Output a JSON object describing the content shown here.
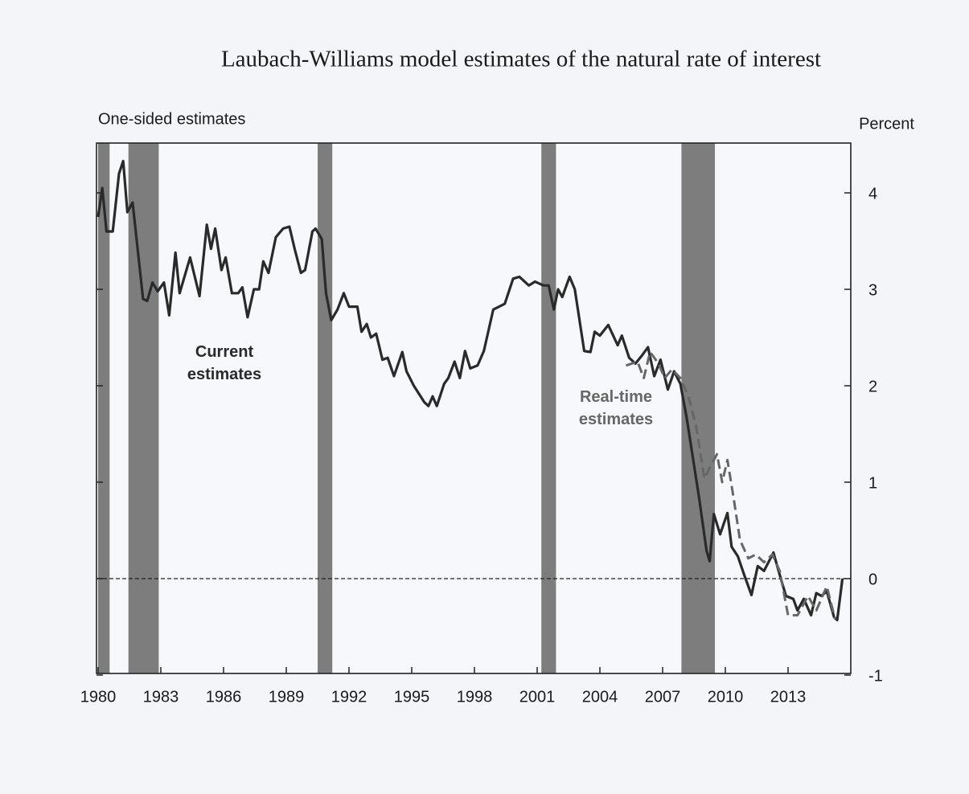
{
  "chart_data": {
    "type": "line",
    "title": "Laubach-Williams model estimates of the natural rate of interest",
    "subtitle": "One-sided estimates",
    "y_label": "Percent",
    "xlim": [
      1980,
      2016
    ],
    "ylim": [
      -1,
      4.5
    ],
    "xticks": [
      1980,
      1983,
      1986,
      1989,
      1992,
      1995,
      1998,
      2001,
      2004,
      2007,
      2010,
      2013
    ],
    "yticks": [
      -1,
      0,
      1,
      2,
      3,
      4
    ],
    "reference_line": 0,
    "recessions": [
      [
        1980.0,
        1980.55
      ],
      [
        1981.45,
        1982.9
      ],
      [
        1990.5,
        1991.2
      ],
      [
        2001.2,
        2001.9
      ],
      [
        2007.9,
        2009.5
      ]
    ],
    "recession_color": "#7d7d7d",
    "annotations": [
      {
        "lines": [
          "Current",
          "estimates"
        ],
        "color": "#2a2a2a"
      },
      {
        "lines": [
          "Real-time",
          "estimates"
        ],
        "color": "#666666"
      }
    ],
    "series": [
      {
        "color": "#2a2a2a",
        "dashed": false,
        "x": [
          1980.0,
          1980.2,
          1980.4,
          1980.7,
          1981.0,
          1981.2,
          1981.4,
          1981.65,
          1982.15,
          1982.35,
          1982.6,
          1982.85,
          1983.15,
          1983.4,
          1983.7,
          1983.9,
          1984.4,
          1984.85,
          1985.2,
          1985.4,
          1985.6,
          1985.9,
          1986.1,
          1986.4,
          1986.7,
          1986.9,
          1987.15,
          1987.45,
          1987.7,
          1987.9,
          1988.15,
          1988.5,
          1988.85,
          1989.15,
          1989.4,
          1989.7,
          1989.9,
          1990.25,
          1990.4,
          1990.7,
          1990.9,
          1991.15,
          1991.45,
          1991.75,
          1992.0,
          1992.4,
          1992.6,
          1992.85,
          1993.05,
          1993.3,
          1993.6,
          1993.85,
          1994.15,
          1994.55,
          1994.75,
          1995.1,
          1995.6,
          1995.8,
          1996.0,
          1996.2,
          1996.55,
          1996.75,
          1997.05,
          1997.3,
          1997.55,
          1997.8,
          1998.15,
          1998.45,
          1998.9,
          1999.45,
          1999.85,
          2000.15,
          2000.6,
          2000.9,
          2001.3,
          2001.55,
          2001.8,
          2002.0,
          2002.2,
          2002.55,
          2002.8,
          2003.25,
          2003.55,
          2003.75,
          2004.0,
          2004.4,
          2004.85,
          2005.05,
          2005.4,
          2005.7,
          2006.0,
          2006.3,
          2006.6,
          2006.9,
          2007.25,
          2007.55,
          2007.85,
          2008.15,
          2008.45,
          2008.75,
          2009.1,
          2009.25,
          2009.45,
          2009.75,
          2010.1,
          2010.3,
          2010.6,
          2010.9,
          2011.25,
          2011.55,
          2011.85,
          2012.3,
          2012.6,
          2012.9,
          2013.25,
          2013.45,
          2013.75,
          2014.1,
          2014.35,
          2014.6,
          2014.85,
          2015.2,
          2015.35,
          2015.6
        ],
        "values": [
          3.75,
          4.05,
          3.6,
          3.6,
          4.2,
          4.33,
          3.8,
          3.9,
          2.9,
          2.88,
          3.07,
          2.98,
          3.07,
          2.73,
          3.38,
          2.96,
          3.33,
          2.93,
          3.67,
          3.42,
          3.63,
          3.2,
          3.33,
          2.96,
          2.96,
          3.02,
          2.71,
          3.0,
          3.0,
          3.29,
          3.17,
          3.54,
          3.63,
          3.65,
          3.42,
          3.17,
          3.2,
          3.6,
          3.63,
          3.52,
          2.96,
          2.68,
          2.79,
          2.96,
          2.82,
          2.82,
          2.56,
          2.64,
          2.5,
          2.54,
          2.27,
          2.29,
          2.1,
          2.35,
          2.15,
          2.0,
          1.83,
          1.79,
          1.89,
          1.79,
          2.02,
          2.08,
          2.25,
          2.08,
          2.36,
          2.18,
          2.21,
          2.36,
          2.79,
          2.85,
          3.11,
          3.13,
          3.04,
          3.08,
          3.04,
          3.04,
          2.79,
          3.0,
          2.92,
          3.13,
          3.0,
          2.36,
          2.35,
          2.56,
          2.52,
          2.63,
          2.42,
          2.52,
          2.29,
          2.23,
          2.31,
          2.4,
          2.1,
          2.27,
          1.96,
          2.15,
          2.02,
          1.67,
          1.25,
          0.83,
          0.29,
          0.18,
          0.67,
          0.46,
          0.68,
          0.33,
          0.23,
          0.04,
          -0.17,
          0.13,
          0.08,
          0.27,
          0.04,
          -0.18,
          -0.21,
          -0.33,
          -0.21,
          -0.38,
          -0.15,
          -0.18,
          -0.13,
          -0.4,
          -0.43,
          0.0
        ]
      },
      {
        "color": "#666666",
        "dashed": true,
        "x": [
          2005.25,
          2005.8,
          2006.1,
          2006.4,
          2006.8,
          2007.1,
          2007.45,
          2007.85,
          2008.25,
          2008.6,
          2009.0,
          2009.3,
          2009.6,
          2009.85,
          2010.1,
          2010.4,
          2010.7,
          2011.1,
          2011.45,
          2011.85,
          2012.25,
          2012.6,
          2013.0,
          2013.45,
          2013.95,
          2014.35,
          2014.85,
          2015.25
        ],
        "values": [
          2.21,
          2.25,
          2.08,
          2.35,
          2.23,
          2.08,
          2.17,
          2.08,
          1.88,
          1.58,
          1.04,
          1.17,
          1.29,
          1.0,
          1.23,
          0.83,
          0.4,
          0.21,
          0.25,
          0.17,
          0.25,
          0.08,
          -0.38,
          -0.38,
          -0.18,
          -0.33,
          -0.08,
          -0.42
        ]
      }
    ]
  }
}
